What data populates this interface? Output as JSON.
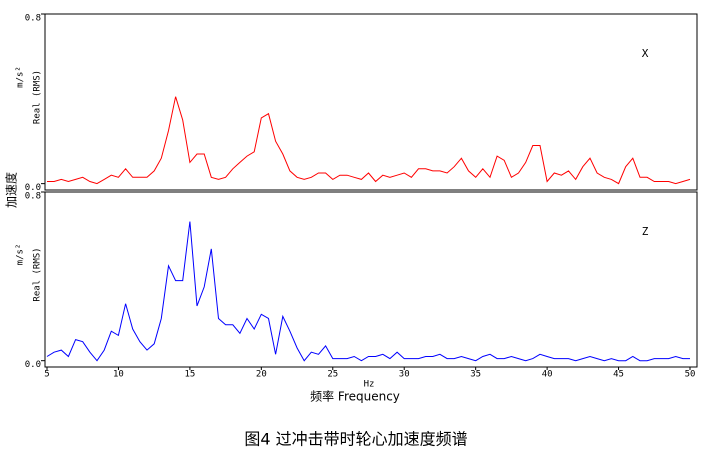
{
  "ylabel": "加速度",
  "caption": "图4 过冲击带时轮心加速度频谱",
  "chart_data": [
    {
      "type": "line",
      "annotation": "X",
      "unit": "m/s²",
      "ylabel": "Real (RMS)",
      "xlim": [
        4.86,
        50.49
      ],
      "ylim": [
        -0.03,
        0.8
      ],
      "yticks": [
        {
          "value": 0,
          "label": "0.0"
        },
        {
          "value": 0.8,
          "label": "0.8"
        }
      ],
      "x": [
        5,
        5.5,
        6,
        6.5,
        7,
        7.5,
        8,
        8.5,
        9,
        9.5,
        10,
        10.5,
        11,
        11.5,
        12,
        12.5,
        13,
        13.5,
        14,
        14.5,
        15,
        15.5,
        16,
        16.5,
        17,
        17.5,
        18,
        18.5,
        19,
        19.5,
        20,
        20.5,
        21,
        21.5,
        22,
        22.5,
        23,
        23.5,
        24,
        24.5,
        25,
        25.5,
        26,
        26.5,
        27,
        27.5,
        28,
        28.5,
        29,
        29.5,
        30,
        30.5,
        31,
        31.5,
        32,
        32.5,
        33,
        33.5,
        34,
        34.5,
        35,
        35.5,
        36,
        36.5,
        37,
        37.5,
        38,
        38.5,
        39,
        39.5,
        40,
        40.5,
        41,
        41.5,
        42,
        42.5,
        43,
        43.5,
        44,
        44.5,
        45,
        45.5,
        46,
        46.5,
        47,
        47.5,
        48,
        48.5,
        49,
        49.5,
        50
      ],
      "series": [
        {
          "color": "#ff0000",
          "values": [
            0.01,
            0.01,
            0.02,
            0.01,
            0.02,
            0.03,
            0.01,
            0.0,
            0.02,
            0.04,
            0.03,
            0.07,
            0.03,
            0.03,
            0.03,
            0.06,
            0.12,
            0.25,
            0.41,
            0.3,
            0.1,
            0.14,
            0.14,
            0.03,
            0.02,
            0.03,
            0.07,
            0.1,
            0.13,
            0.15,
            0.31,
            0.33,
            0.2,
            0.14,
            0.06,
            0.03,
            0.02,
            0.03,
            0.05,
            0.05,
            0.02,
            0.04,
            0.04,
            0.03,
            0.02,
            0.05,
            0.01,
            0.04,
            0.03,
            0.04,
            0.05,
            0.03,
            0.07,
            0.07,
            0.06,
            0.06,
            0.05,
            0.08,
            0.12,
            0.06,
            0.03,
            0.07,
            0.03,
            0.13,
            0.11,
            0.03,
            0.05,
            0.1,
            0.18,
            0.18,
            0.01,
            0.05,
            0.04,
            0.06,
            0.02,
            0.08,
            0.12,
            0.05,
            0.03,
            0.02,
            0.0,
            0.08,
            0.12,
            0.03,
            0.03,
            0.01,
            0.01,
            0.01,
            0.0,
            0.01,
            0.02
          ]
        }
      ]
    },
    {
      "type": "line",
      "annotation": "Z",
      "unit": "m/s²",
      "ylabel": "Real (RMS)",
      "xlabel": "Hz",
      "xtitle": "频率 Frequency",
      "xlim": [
        4.86,
        50.49
      ],
      "ylim": [
        -0.03,
        0.8
      ],
      "yticks": [
        {
          "value": 0,
          "label": "0.0"
        },
        {
          "value": 0.8,
          "label": "0.8"
        }
      ],
      "xticks": [
        5,
        10,
        15,
        20,
        25,
        30,
        35,
        40,
        45,
        50
      ],
      "x": [
        5,
        5.5,
        6,
        6.5,
        7,
        7.5,
        8,
        8.5,
        9,
        9.5,
        10,
        10.5,
        11,
        11.5,
        12,
        12.5,
        13,
        13.5,
        14,
        14.5,
        15,
        15.5,
        16,
        16.5,
        17,
        17.5,
        18,
        18.5,
        19,
        19.5,
        20,
        20.5,
        21,
        21.5,
        22,
        22.5,
        23,
        23.5,
        24,
        24.5,
        25,
        25.5,
        26,
        26.5,
        27,
        27.5,
        28,
        28.5,
        29,
        29.5,
        30,
        30.5,
        31,
        31.5,
        32,
        32.5,
        33,
        33.5,
        34,
        34.5,
        35,
        35.5,
        36,
        36.5,
        37,
        37.5,
        38,
        38.5,
        39,
        39.5,
        40,
        40.5,
        41,
        41.5,
        42,
        42.5,
        43,
        43.5,
        44,
        44.5,
        45,
        45.5,
        46,
        46.5,
        47,
        47.5,
        48,
        48.5,
        49,
        49.5,
        50
      ],
      "series": [
        {
          "color": "#0000ff",
          "values": [
            0.02,
            0.04,
            0.05,
            0.02,
            0.1,
            0.09,
            0.04,
            0.0,
            0.05,
            0.14,
            0.12,
            0.27,
            0.15,
            0.09,
            0.05,
            0.08,
            0.2,
            0.45,
            0.38,
            0.38,
            0.66,
            0.26,
            0.35,
            0.53,
            0.2,
            0.17,
            0.17,
            0.13,
            0.2,
            0.15,
            0.22,
            0.2,
            0.03,
            0.21,
            0.14,
            0.06,
            0.0,
            0.04,
            0.03,
            0.07,
            0.01,
            0.01,
            0.01,
            0.02,
            0.0,
            0.02,
            0.02,
            0.03,
            0.01,
            0.04,
            0.01,
            0.01,
            0.01,
            0.02,
            0.02,
            0.03,
            0.01,
            0.01,
            0.02,
            0.01,
            0.0,
            0.02,
            0.03,
            0.01,
            0.01,
            0.02,
            0.01,
            0.0,
            0.01,
            0.03,
            0.02,
            0.01,
            0.01,
            0.01,
            0.0,
            0.01,
            0.02,
            0.01,
            0.0,
            0.01,
            0.0,
            0.0,
            0.02,
            0.0,
            0.0,
            0.01,
            0.01,
            0.01,
            0.02,
            0.01,
            0.01
          ]
        }
      ]
    }
  ]
}
